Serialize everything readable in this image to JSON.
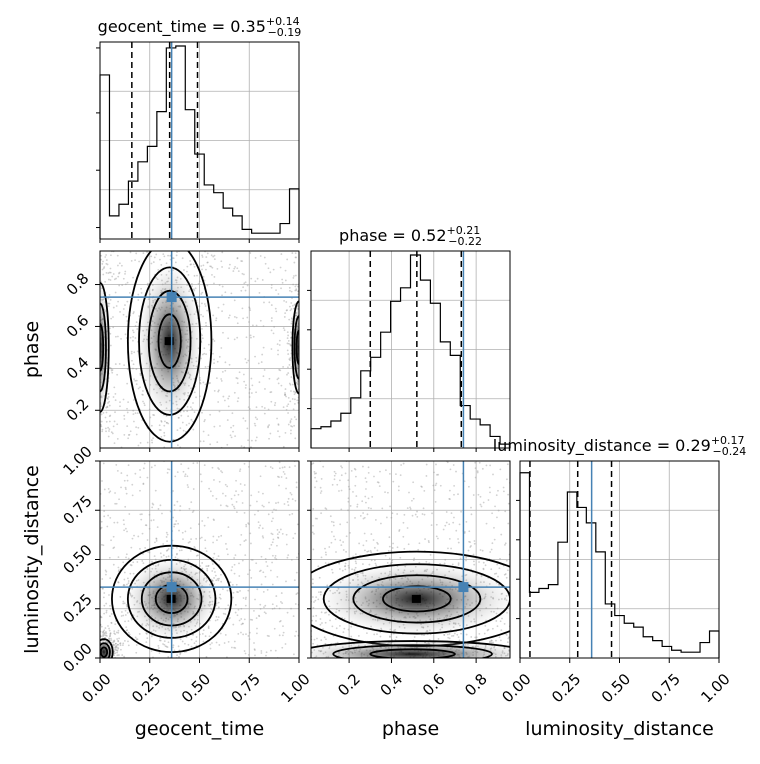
{
  "chart_data": {
    "type": "corner",
    "parameters": [
      "geocent_time",
      "phase",
      "luminosity_distance"
    ],
    "truths": {
      "geocent_time": 0.36,
      "phase": 0.74,
      "luminosity_distance": 0.36
    },
    "titles": {
      "geocent_time": {
        "prefix": "geocent_time = ",
        "median": "0.35",
        "plus": "+0.14",
        "minus": "−0.19"
      },
      "phase": {
        "prefix": "phase = ",
        "median": "0.52",
        "plus": "+0.21",
        "minus": "−0.22"
      },
      "luminosity_distance": {
        "prefix": "luminosity_distance = ",
        "median": "0.29",
        "plus": "+0.17",
        "minus": "−0.24"
      }
    },
    "quantiles": {
      "geocent_time": [
        0.16,
        0.35,
        0.49
      ],
      "phase": [
        0.3,
        0.52,
        0.73
      ],
      "luminosity_distance": [
        0.05,
        0.29,
        0.46
      ]
    },
    "ranges": {
      "geocent_time": [
        0.0,
        1.0
      ],
      "phase": [
        0.02,
        0.96
      ],
      "luminosity_distance": [
        0.0,
        1.0
      ]
    },
    "ticks": {
      "geocent_time": [
        "0.00",
        "0.25",
        "0.50",
        "0.75",
        "1.00"
      ],
      "phase": [
        "0.2",
        "0.4",
        "0.6",
        "0.8"
      ],
      "luminosity_distance": [
        "0.00",
        "0.25",
        "0.50",
        "0.75",
        "1.00"
      ]
    },
    "histograms": {
      "geocent_time": [
        0.85,
        0.12,
        0.18,
        0.3,
        0.4,
        0.48,
        0.66,
        0.99,
        1.0,
        0.67,
        0.44,
        0.28,
        0.24,
        0.16,
        0.12,
        0.05,
        0.03,
        0.03,
        0.03,
        0.08,
        0.26
      ],
      "phase": [
        0.1,
        0.11,
        0.14,
        0.18,
        0.26,
        0.4,
        0.47,
        0.6,
        0.76,
        0.83,
        1.0,
        0.87,
        0.75,
        0.55,
        0.48,
        0.22,
        0.15,
        0.12,
        0.06,
        0.02
      ],
      "luminosity_distance": [
        0.96,
        0.34,
        0.36,
        0.38,
        0.6,
        0.86,
        0.78,
        0.7,
        0.55,
        0.28,
        0.22,
        0.18,
        0.16,
        0.11,
        0.09,
        0.06,
        0.04,
        0.03,
        0.03,
        0.08,
        0.14
      ]
    },
    "grid": true
  }
}
